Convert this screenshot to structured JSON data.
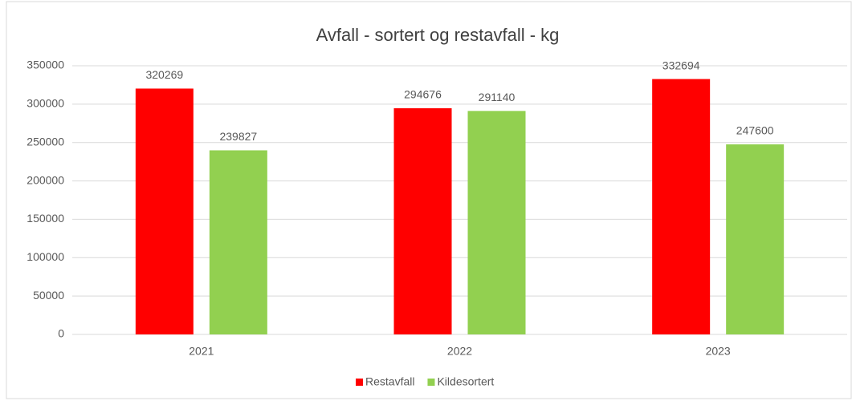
{
  "chart_data": {
    "type": "bar",
    "title": "Avfall - sortert og restavfall - kg",
    "categories": [
      "2021",
      "2022",
      "2023"
    ],
    "series": [
      {
        "name": "Restavfall",
        "color": "#ff0000",
        "values": [
          320269,
          294676,
          332694
        ]
      },
      {
        "name": "Kildesortert",
        "color": "#92d050",
        "values": [
          239827,
          291140,
          247600
        ]
      }
    ],
    "ylim": [
      0,
      350000
    ],
    "yticks": [
      0,
      50000,
      100000,
      150000,
      200000,
      250000,
      300000,
      350000
    ],
    "grid": true,
    "legend": "bottom"
  }
}
